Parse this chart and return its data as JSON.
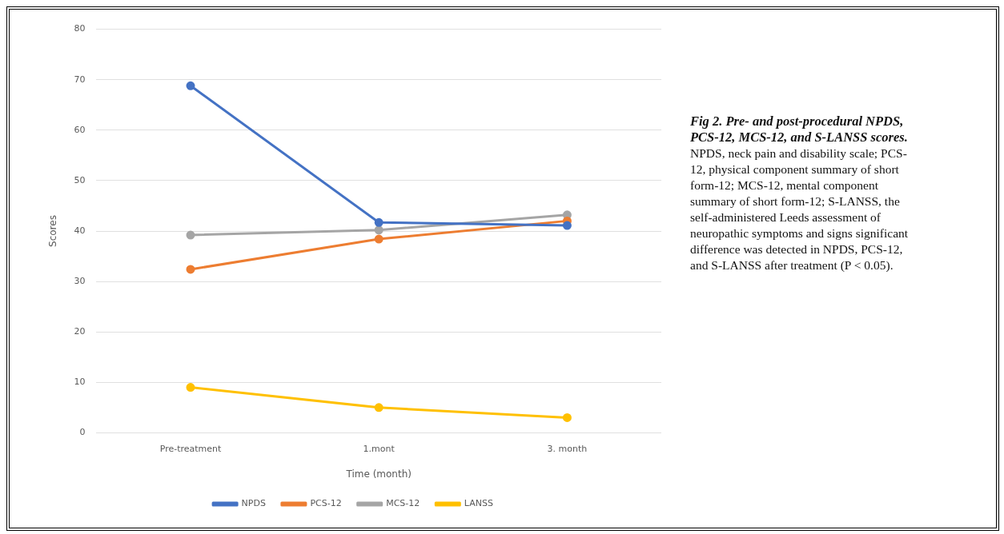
{
  "chart_data": {
    "type": "line",
    "title": "Fig 2. Pre- and post-procedural NPDS, PCS-12, MCS-12, and S-LANSS scores.",
    "xlabel": "Time (month)",
    "ylabel": "Scores",
    "categories": [
      "Pre-treatment",
      "1.mont",
      "3. month"
    ],
    "series": [
      {
        "name": "NPDS",
        "color": "#4472c4",
        "values": [
          68.8,
          41.7,
          41.1
        ]
      },
      {
        "name": "PCS-12",
        "color": "#ed7d31",
        "values": [
          32.4,
          38.4,
          42
        ]
      },
      {
        "name": "MCS-12",
        "color": "#a5a5a5",
        "values": [
          39.2,
          40.2,
          43.2
        ]
      },
      {
        "name": "LANSS",
        "color": "#ffc000",
        "values": [
          9,
          5,
          3
        ]
      }
    ],
    "ylim": [
      0,
      80
    ],
    "yticks": [
      0,
      10,
      20,
      30,
      40,
      50,
      60,
      70,
      80
    ],
    "grid": "y",
    "legend": "bottom",
    "marker": "circle",
    "line_style": "solid",
    "annotations": [
      "NPDS, neck pain and disability scale; PCS-12, physical component summary of short form-12; MCS-12, mental component summary of short form-12; S-LANSS, the self-administered Leeds assessment of neuropathic symptoms and signs significant difference was detected in NPDS, PCS-12, and S-LANSS after treatment (P < 0.05)."
    ]
  }
}
